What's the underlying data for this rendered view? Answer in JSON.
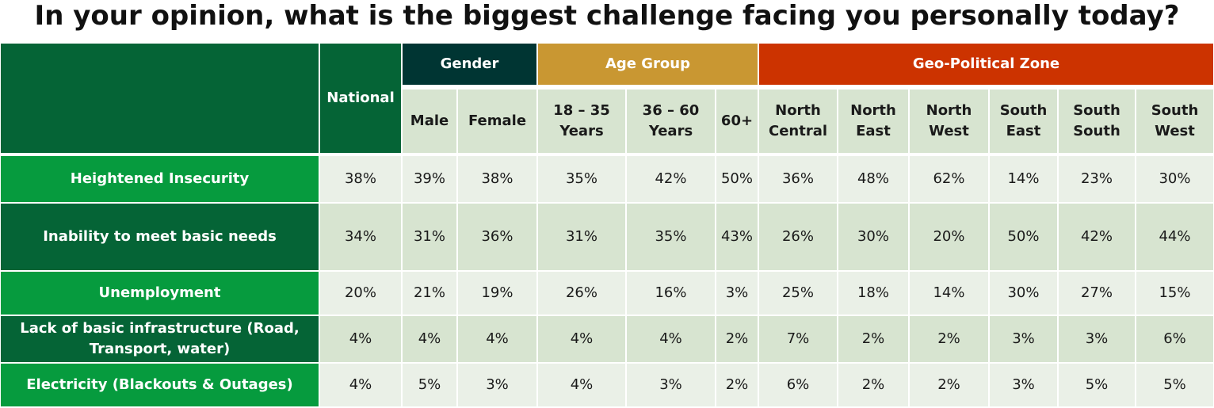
{
  "title": "In your opinion, what is the biggest challenge facing you personally today?",
  "colors": {
    "dark_green": "#056436",
    "mid_green": "#069B3E",
    "gender_header": "#003533",
    "age_header": "#C99732",
    "zone_header": "#CC3300",
    "subheader_bg": "#D7E4D0",
    "row_light": "#EAF0E7",
    "row_dark": "#D7E4D0"
  },
  "groups": {
    "national": "National",
    "gender": "Gender",
    "age": "Age Group",
    "zone": "Geo-Political Zone"
  },
  "subheaders": [
    [
      "Male"
    ],
    [
      "Female"
    ],
    [
      "18 – 35",
      "Years"
    ],
    [
      "36 – 60",
      "Years"
    ],
    [
      "60+"
    ],
    [
      "North",
      "Central"
    ],
    [
      "North",
      "East"
    ],
    [
      "North",
      "West"
    ],
    [
      "South",
      "East"
    ],
    [
      "South",
      "South"
    ],
    [
      "South",
      "West"
    ]
  ],
  "chart_data": {
    "type": "table",
    "title": "In your opinion, what is the biggest challenge facing you personally today?",
    "columns": [
      "National",
      "Male",
      "Female",
      "18 – 35 Years",
      "36 – 60 Years",
      "60+",
      "North Central",
      "North East",
      "North West",
      "South East",
      "South South",
      "South West"
    ],
    "rows": [
      {
        "label": [
          "Heightened Insecurity"
        ],
        "values": [
          "38%",
          "39%",
          "38%",
          "35%",
          "42%",
          "50%",
          "36%",
          "48%",
          "62%",
          "14%",
          "23%",
          "30%"
        ]
      },
      {
        "label": [
          "Inability to meet basic needs"
        ],
        "values": [
          "34%",
          "31%",
          "36%",
          "31%",
          "35%",
          "43%",
          "26%",
          "30%",
          "20%",
          "50%",
          "42%",
          "44%"
        ]
      },
      {
        "label": [
          "Unemployment"
        ],
        "values": [
          "20%",
          "21%",
          "19%",
          "26%",
          "16%",
          "3%",
          "25%",
          "18%",
          "14%",
          "30%",
          "27%",
          "15%"
        ]
      },
      {
        "label": [
          "Lack of basic infrastructure (Road,",
          "Transport, water)"
        ],
        "values": [
          "4%",
          "4%",
          "4%",
          "4%",
          "4%",
          "2%",
          "7%",
          "2%",
          "2%",
          "3%",
          "3%",
          "6%"
        ]
      },
      {
        "label": [
          "Electricity (Blackouts & Outages)"
        ],
        "values": [
          "4%",
          "5%",
          "3%",
          "4%",
          "3%",
          "2%",
          "6%",
          "2%",
          "2%",
          "3%",
          "5%",
          "5%"
        ]
      }
    ]
  }
}
